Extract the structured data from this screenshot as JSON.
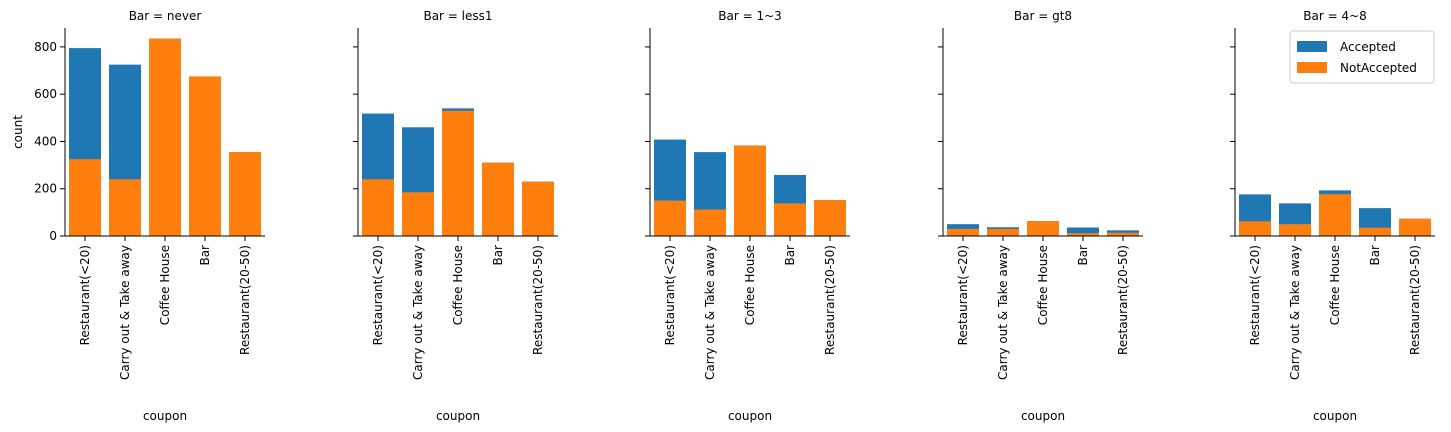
{
  "chart_data": {
    "type": "bar",
    "layout": "facet-grid, 5 panels, shared y axis, stacked/overlaid bars",
    "facet_variable": "Bar",
    "categories": [
      "Restaurant(<20)",
      "Carry out & Take away",
      "Coffee House",
      "Bar",
      "Restaurant(20-50)"
    ],
    "xlabel": "coupon",
    "ylabel": "count",
    "ylim": [
      0,
      880
    ],
    "yticks": [
      0,
      200,
      400,
      600,
      800
    ],
    "grid": false,
    "legend": {
      "placement": "top-right",
      "entries": [
        {
          "name": "Accepted",
          "color": "#1f77b4"
        },
        {
          "name": "NotAccepted",
          "color": "#ff7f0e"
        }
      ]
    },
    "panels": [
      {
        "title": "Bar = never",
        "series": [
          {
            "name": "Accepted",
            "values": [
              795,
              725,
              835,
              675,
              355
            ]
          },
          {
            "name": "NotAccepted",
            "values": [
              325,
              240,
              835,
              675,
              355
            ]
          }
        ]
      },
      {
        "title": "Bar = less1",
        "series": [
          {
            "name": "Accepted",
            "values": [
              518,
              460,
              540,
              310,
              230
            ]
          },
          {
            "name": "NotAccepted",
            "values": [
              240,
              185,
              530,
              310,
              230
            ]
          }
        ]
      },
      {
        "title": "Bar = 1~3",
        "series": [
          {
            "name": "Accepted",
            "values": [
              408,
              355,
              383,
              258,
              152
            ]
          },
          {
            "name": "NotAccepted",
            "values": [
              150,
              112,
              383,
              138,
              152
            ]
          }
        ]
      },
      {
        "title": "Bar = gt8",
        "series": [
          {
            "name": "Accepted",
            "values": [
              50,
              37,
              63,
              36,
              24
            ]
          },
          {
            "name": "NotAccepted",
            "values": [
              30,
              30,
              63,
              12,
              14
            ]
          }
        ]
      },
      {
        "title": "Bar = 4~8",
        "series": [
          {
            "name": "Accepted",
            "values": [
              176,
              138,
              193,
              118,
              73
            ]
          },
          {
            "name": "NotAccepted",
            "values": [
              62,
              50,
              177,
              35,
              73
            ]
          }
        ]
      }
    ]
  }
}
